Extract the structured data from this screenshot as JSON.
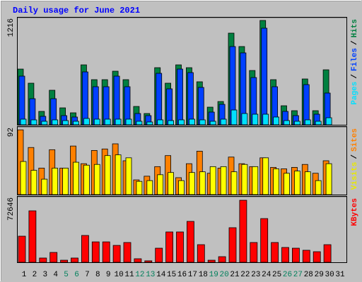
{
  "chart_data": [
    {
      "type": "bar",
      "title": "Daily usage for June 2021",
      "legend_separator": "/",
      "ylim": [
        0,
        1216
      ],
      "yticks": [
        1216
      ],
      "series": [
        {
          "name": "Hits",
          "color": "#008040",
          "values": [
            632,
            472,
            152,
            392,
            192,
            136,
            680,
            512,
            512,
            608,
            512,
            208,
            128,
            648,
            472,
            680,
            648,
            488,
            200,
            264,
            1040,
            888,
            616,
            1184,
            512,
            216,
            160,
            520,
            160,
            624,
            null
          ]
        },
        {
          "name": "Files",
          "color": "#0040ff",
          "values": [
            552,
            296,
            96,
            296,
            104,
            88,
            600,
            432,
            432,
            552,
            432,
            128,
            104,
            584,
            408,
            632,
            592,
            424,
            144,
            232,
            888,
            816,
            536,
            1096,
            432,
            152,
            104,
            456,
            120,
            360,
            null
          ]
        },
        {
          "name": "Pages",
          "color": "#00e0ff",
          "values": [
            64,
            56,
            40,
            56,
            48,
            40,
            72,
            64,
            64,
            64,
            64,
            40,
            32,
            56,
            48,
            56,
            64,
            56,
            40,
            64,
            168,
            128,
            120,
            120,
            88,
            48,
            40,
            56,
            40,
            80,
            null
          ]
        }
      ]
    },
    {
      "type": "bar",
      "legend_separator": "/",
      "ylim": [
        0,
        92
      ],
      "yticks": [
        92
      ],
      "series": [
        {
          "name": "Sites",
          "color": "#ff8000",
          "values": [
            88,
            64,
            36,
            61,
            36,
            66,
            42,
            60,
            62,
            69,
            46,
            20,
            25,
            38,
            53,
            23,
            42,
            59,
            29,
            36,
            51,
            42,
            38,
            50,
            37,
            35,
            37,
            41,
            29,
            46,
            null
          ]
        },
        {
          "name": "Visits",
          "color": "#ffff00",
          "values": [
            45,
            33,
            21,
            36,
            36,
            44,
            40,
            41,
            53,
            54,
            50,
            18,
            19,
            27,
            30,
            19,
            30,
            31,
            38,
            38,
            31,
            41,
            38,
            50,
            35,
            29,
            32,
            31,
            19,
            42,
            null
          ]
        }
      ]
    },
    {
      "type": "bar",
      "ylim": [
        0,
        72646
      ],
      "yticks": [
        72646
      ],
      "categories": [
        "1",
        "2",
        "3",
        "4",
        "5",
        "6",
        "7",
        "8",
        "9",
        "10",
        "11",
        "12",
        "13",
        "14",
        "15",
        "16",
        "17",
        "18",
        "19",
        "20",
        "21",
        "22",
        "23",
        "24",
        "25",
        "26",
        "27",
        "28",
        "29",
        "30",
        "31"
      ],
      "category_colors": [
        "#000000",
        "#000000",
        "#000000",
        "#000000",
        "#00805c",
        "#00805c",
        "#000000",
        "#000000",
        "#000000",
        "#000000",
        "#000000",
        "#00805c",
        "#00805c",
        "#000000",
        "#000000",
        "#000000",
        "#000000",
        "#000000",
        "#00805c",
        "#00805c",
        "#000000",
        "#000000",
        "#000000",
        "#000000",
        "#000000",
        "#00805c",
        "#00805c",
        "#000000",
        "#000000",
        "#000000",
        "#000000"
      ],
      "series": [
        {
          "name": "KBytes",
          "color": "#ff0000",
          "values": [
            28900,
            57000,
            4700,
            10900,
            2300,
            4700,
            29700,
            22600,
            22600,
            18700,
            21900,
            3900,
            1600,
            15600,
            33600,
            33600,
            45300,
            19500,
            2300,
            6200,
            38300,
            68700,
            21900,
            48400,
            21900,
            16400,
            15600,
            13300,
            11700,
            19500,
            null
          ]
        }
      ]
    }
  ]
}
